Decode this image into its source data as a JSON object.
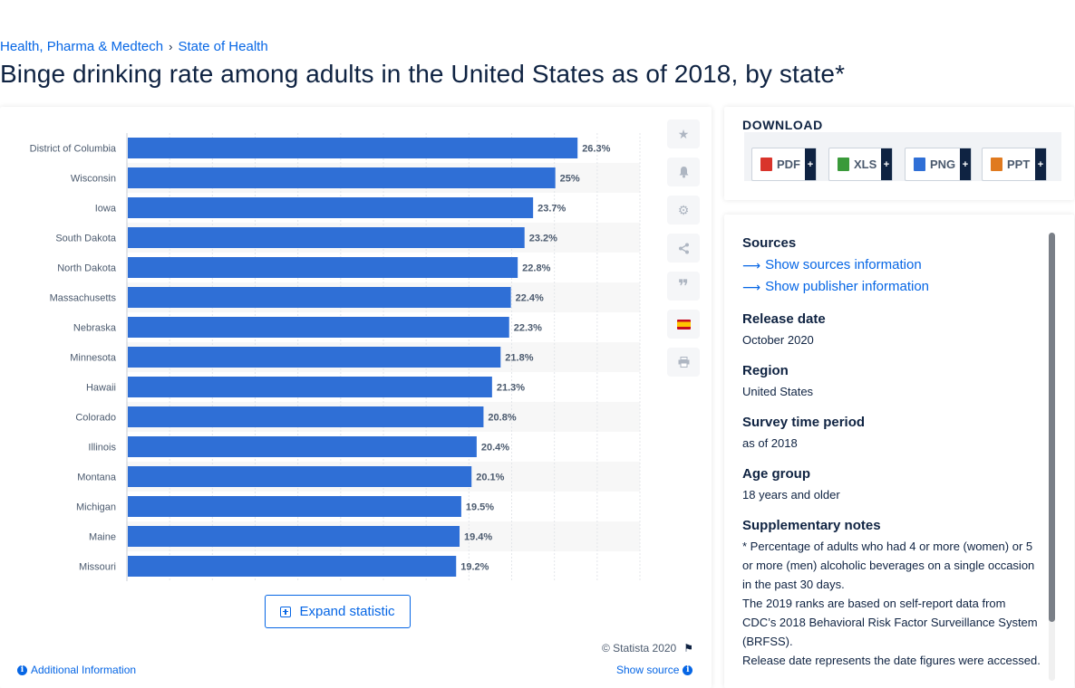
{
  "breadcrumb": {
    "items": [
      "Health, Pharma & Medtech",
      "State of Health"
    ],
    "separator": "›"
  },
  "title": "Binge drinking rate among adults in the United States as of 2018, by state*",
  "chart_data": {
    "type": "bar",
    "orientation": "horizontal",
    "categories": [
      "District of Columbia",
      "Wisconsin",
      "Iowa",
      "South Dakota",
      "North Dakota",
      "Massachusetts",
      "Nebraska",
      "Minnesota",
      "Hawaii",
      "Colorado",
      "Illinois",
      "Montana",
      "Michigan",
      "Maine",
      "Missouri"
    ],
    "values": [
      26.3,
      25,
      23.7,
      23.2,
      22.8,
      22.4,
      22.3,
      21.8,
      21.3,
      20.8,
      20.4,
      20.1,
      19.5,
      19.4,
      19.2
    ],
    "labels": [
      "26.3%",
      "25%",
      "23.7%",
      "23.2%",
      "22.8%",
      "22.4%",
      "22.3%",
      "21.8%",
      "21.3%",
      "20.8%",
      "20.4%",
      "20.1%",
      "19.5%",
      "19.4%",
      "19.2%"
    ],
    "xlim": [
      0,
      30
    ],
    "grid": true,
    "bar_color": "#2f6fd6"
  },
  "chart_ui": {
    "expand_label": "Expand statistic",
    "copyright": "© Statista 2020",
    "additional_info": "Additional Information",
    "show_source": "Show source",
    "tools": [
      "star-icon",
      "bell-icon",
      "gear-icon",
      "share-icon",
      "quote-icon",
      "spain-flag-icon",
      "print-icon"
    ]
  },
  "download": {
    "title": "DOWNLOAD",
    "buttons": [
      {
        "label": "PDF",
        "icon": "pdf-file-icon",
        "color": "#d9342b"
      },
      {
        "label": "XLS",
        "icon": "xls-file-icon",
        "color": "#3a9a3a"
      },
      {
        "label": "PNG",
        "icon": "png-file-icon",
        "color": "#2f6fd6"
      },
      {
        "label": "PPT",
        "icon": "ppt-file-icon",
        "color": "#e07a1f"
      }
    ],
    "plus": "+"
  },
  "info": {
    "sources_head": "Sources",
    "sources_link": "Show sources information",
    "publisher_link": "Show publisher information",
    "release_head": "Release date",
    "release_val": "October 2020",
    "region_head": "Region",
    "region_val": "United States",
    "survey_head": "Survey time period",
    "survey_val": "as of 2018",
    "age_head": "Age group",
    "age_val": "18 years and older",
    "notes_head": "Supplementary notes",
    "notes_1": "* Percentage of adults who had 4 or more (women) or 5 or more (men) alcoholic beverages on a single occasion in the past 30 days.",
    "notes_2": "The 2019 ranks are based on self-report data from CDC’s 2018 Behavioral Risk Factor Surveillance System (BRFSS).",
    "notes_3": "Release date represents the date figures were accessed."
  }
}
